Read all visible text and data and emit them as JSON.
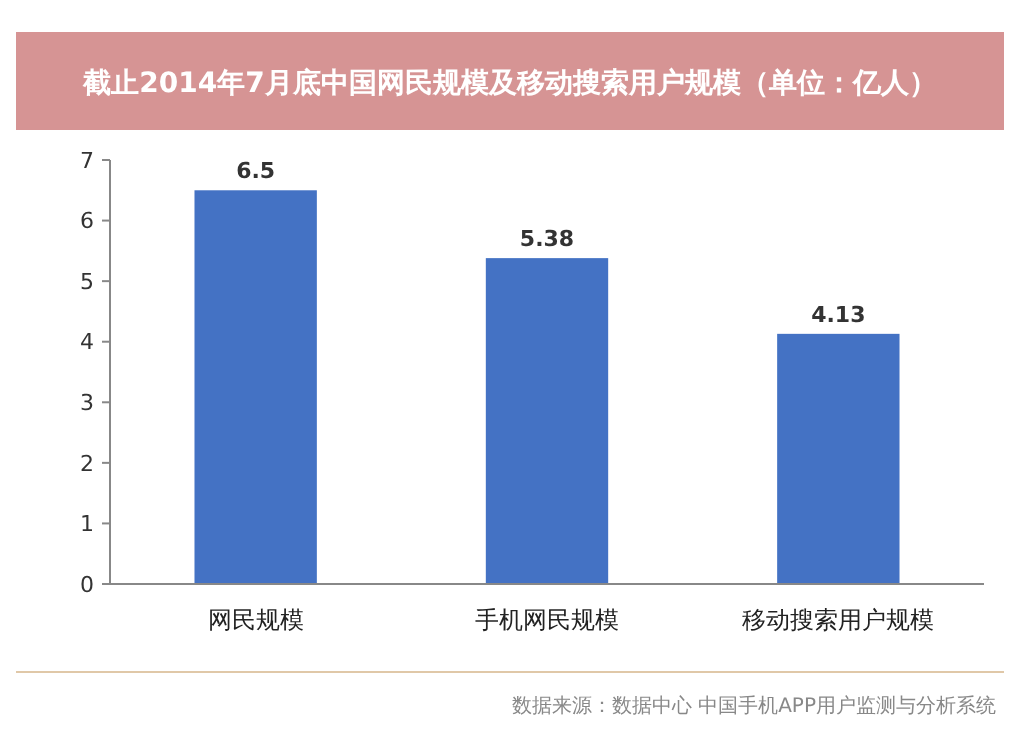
{
  "chart_data": {
    "type": "bar",
    "title": "截止2014年7月底中国网民规模及移动搜索用户规模（单位：亿人）",
    "categories": [
      "网民规模",
      "手机网民规模",
      "移动搜索用户规模"
    ],
    "values": [
      6.5,
      5.38,
      4.13
    ],
    "color": "#4472c4",
    "data_labels": true,
    "ylim": [
      0,
      7
    ],
    "yticks": [
      0,
      1,
      2,
      3,
      4,
      5,
      6,
      7
    ],
    "grid": false,
    "annotations": [
      "数据来源：数据中心 中国手机APP用户监测与分析系统"
    ]
  }
}
